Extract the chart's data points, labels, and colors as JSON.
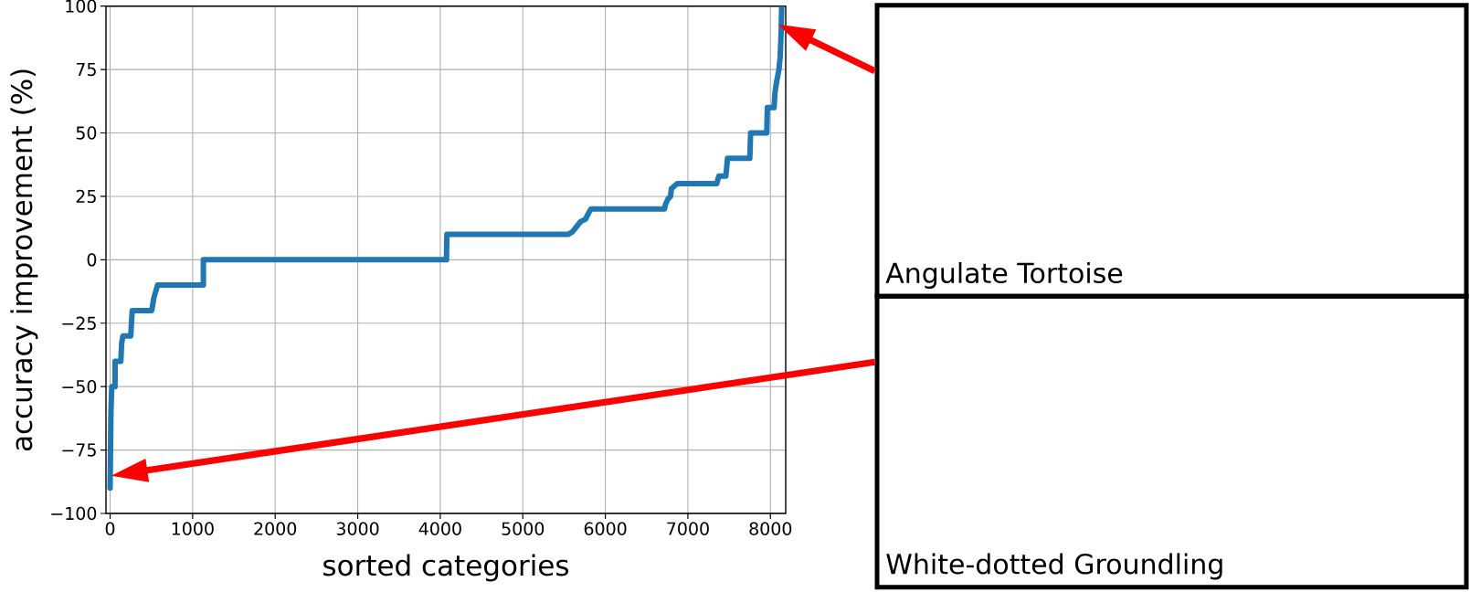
{
  "chart_data": {
    "type": "line",
    "xlabel": "sorted categories",
    "ylabel": "accuracy improvement (%)",
    "x": [
      0,
      5,
      10,
      20,
      60,
      60,
      130,
      140,
      155,
      250,
      268,
      505,
      530,
      575,
      1130,
      1130,
      4075,
      4080,
      5547,
      5600,
      5650,
      5700,
      5760,
      5790,
      5825,
      6716,
      6730,
      6760,
      6790,
      6800,
      6870,
      7350,
      7375,
      7460,
      7480,
      7750,
      7760,
      7955,
      7963,
      8044,
      8055,
      8074,
      8103,
      8118,
      8130,
      8136
    ],
    "series": [
      {
        "color": "#1f77b4",
        "values": [
          -90,
          -75,
          -60,
          -50,
          -50,
          -40,
          -40,
          -33,
          -30,
          -30,
          -20,
          -20,
          -15,
          -10,
          -10,
          0,
          0,
          10,
          10,
          11,
          13,
          15,
          16,
          18,
          20,
          20,
          22,
          24,
          25,
          28,
          30,
          30,
          33,
          33,
          40,
          40,
          50,
          50,
          60,
          60,
          66,
          70,
          75,
          80,
          90,
          100
        ]
      }
    ],
    "xlim": [
      -50,
      8185
    ],
    "ylim": [
      -100,
      100
    ],
    "xticks": [
      0,
      1000,
      2000,
      3000,
      4000,
      5000,
      6000,
      7000,
      8000
    ],
    "yticks": [
      {
        "value": -100,
        "label": "−100"
      },
      {
        "value": -75,
        "label": "−75"
      },
      {
        "value": -50,
        "label": "−50"
      },
      {
        "value": -25,
        "label": "−25"
      },
      0,
      25,
      50,
      75,
      100
    ],
    "grid": true,
    "line_style": "solid",
    "annotations": [
      "Angulate Tortoise",
      "White-dotted Groundling"
    ]
  }
}
